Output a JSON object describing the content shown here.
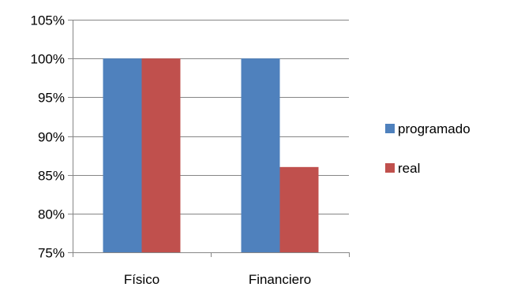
{
  "chart_data": {
    "type": "bar",
    "categories": [
      "Físico",
      "Financiero"
    ],
    "series": [
      {
        "name": "programado",
        "values": [
          100,
          100
        ],
        "color": "#4F81BD"
      },
      {
        "name": "real",
        "values": [
          100,
          86
        ],
        "color": "#C0504D"
      }
    ],
    "ylim": [
      75,
      105
    ],
    "yticks": [
      75,
      80,
      85,
      90,
      95,
      100,
      105
    ],
    "ytick_labels": [
      "75%",
      "80%",
      "85%",
      "90%",
      "95%",
      "100%",
      "105%"
    ],
    "grid": true,
    "legend_position": "right",
    "title": "",
    "xlabel": "",
    "ylabel": ""
  }
}
